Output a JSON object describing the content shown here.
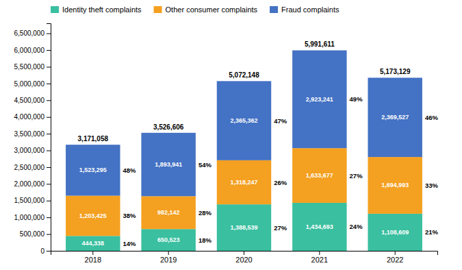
{
  "chart_data": {
    "type": "bar",
    "stacked": true,
    "data_labels": true,
    "grid": false,
    "legend": "upper left",
    "categories": [
      "2018",
      "2019",
      "2020",
      "2021",
      "2022"
    ],
    "series": [
      {
        "name": "Identity theft complaints",
        "color": "#3abfa0",
        "values": [
          444338,
          650523,
          1388539,
          1434693,
          1108609
        ],
        "value_labels": [
          "444,338",
          "650,523",
          "1,388,539",
          "1,434,693",
          "1,108,609"
        ],
        "share_labels": [
          "14%",
          "18%",
          "27%",
          "24%",
          "21%"
        ]
      },
      {
        "name": "Other consumer complaints",
        "color": "#f4a020",
        "values": [
          1203425,
          982142,
          1318247,
          1633677,
          1694993
        ],
        "value_labels": [
          "1,203,425",
          "982,142",
          "1,318,247",
          "1,633,677",
          "1,694,993"
        ],
        "share_labels": [
          "38%",
          "28%",
          "26%",
          "27%",
          "33%"
        ]
      },
      {
        "name": "Fraud complaints",
        "color": "#4472c4",
        "values": [
          1523295,
          1893941,
          2365362,
          2923241,
          2369527
        ],
        "value_labels": [
          "1,523,295",
          "1,893,941",
          "2,365,362",
          "2,923,241",
          "2,369,527"
        ],
        "share_labels": [
          "48%",
          "54%",
          "47%",
          "49%",
          "46%"
        ]
      }
    ],
    "totals": [
      3171058,
      3526606,
      5072148,
      5991611,
      5173129
    ],
    "total_labels": [
      "3,171,058",
      "3,526,606",
      "5,072,148",
      "5,991,611",
      "5,173,129"
    ],
    "ylim": [
      0,
      6800000
    ],
    "yticks": [
      0,
      {
        "value": 500000,
        "label": "500,000"
      },
      {
        "value": 1000000,
        "label": "1,000,000"
      },
      {
        "value": 1500000,
        "label": "1,500,000"
      },
      {
        "value": 2000000,
        "label": "2,000,000"
      },
      {
        "value": 2500000,
        "label": "2,500,000"
      },
      {
        "value": 3000000,
        "label": "3,000,000"
      },
      {
        "value": 3500000,
        "label": "3,500,000"
      },
      {
        "value": 4000000,
        "label": "4,000,000"
      },
      {
        "value": 4500000,
        "label": "4,500,000"
      },
      {
        "value": 5000000,
        "label": "5,000,000"
      },
      {
        "value": 5500000,
        "label": "5,500,000"
      },
      {
        "value": 6000000,
        "label": "6,000,000"
      },
      {
        "value": 6500000,
        "label": "6,500,000"
      }
    ]
  }
}
